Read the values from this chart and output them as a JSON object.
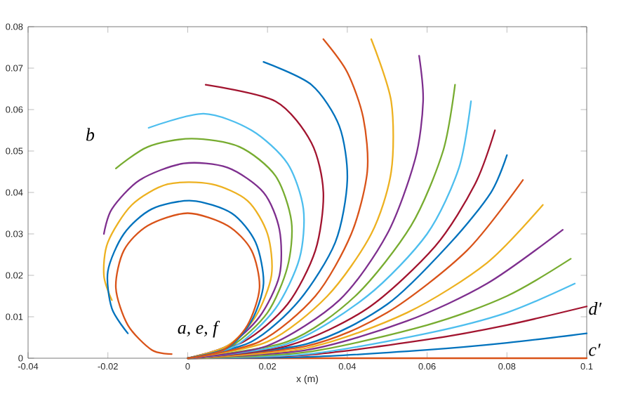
{
  "chart_data": {
    "type": "line",
    "xlabel": "x (m)",
    "xlim": [
      -0.04,
      0.1
    ],
    "xticks": [
      -0.04,
      -0.02,
      0,
      0.02,
      0.04,
      0.06,
      0.08,
      0.1
    ],
    "ylim": [
      0,
      0.08
    ],
    "yticks": [
      0,
      0.01,
      0.02,
      0.03,
      0.04,
      0.05,
      0.06,
      0.07,
      0.08
    ],
    "grid": false,
    "line_style": "solid",
    "annotations": [
      "b",
      "a, e, f",
      "d′",
      "c′"
    ],
    "series": [
      {
        "color": "#d95319",
        "x": [
          0,
          0.1
        ],
        "values": [
          0,
          0
        ]
      },
      {
        "color": "#0072bd",
        "x": [
          0,
          0.03,
          0.06,
          0.08,
          0.1
        ],
        "values": [
          0,
          0.0003,
          0.002,
          0.0037,
          0.006
        ]
      },
      {
        "color": "#a2142f",
        "x": [
          0,
          0.03,
          0.06,
          0.08,
          0.1
        ],
        "values": [
          0,
          0.0008,
          0.0045,
          0.008,
          0.0125
        ]
      },
      {
        "color": "#4dbeee",
        "x": [
          0,
          0.03,
          0.06,
          0.08,
          0.097
        ],
        "values": [
          0,
          0.001,
          0.006,
          0.011,
          0.018
        ]
      },
      {
        "color": "#77ac30",
        "x": [
          0,
          0.03,
          0.06,
          0.08,
          0.096
        ],
        "values": [
          0,
          0.0015,
          0.008,
          0.015,
          0.024
        ]
      },
      {
        "color": "#7e2f8e",
        "x": [
          0,
          0.03,
          0.055,
          0.075,
          0.094
        ],
        "values": [
          0,
          0.002,
          0.009,
          0.018,
          0.031
        ]
      },
      {
        "color": "#edb120",
        "x": [
          0,
          0.03,
          0.055,
          0.075,
          0.089
        ],
        "values": [
          0,
          0.0025,
          0.011,
          0.023,
          0.037
        ]
      },
      {
        "color": "#d95319",
        "x": [
          0,
          0.03,
          0.05,
          0.07,
          0.084
        ],
        "values": [
          0,
          0.003,
          0.011,
          0.026,
          0.043
        ]
      },
      {
        "color": "#0072bd",
        "x": [
          0,
          0.03,
          0.05,
          0.066,
          0.076,
          0.08
        ],
        "values": [
          0,
          0.0035,
          0.013,
          0.028,
          0.04,
          0.049
        ]
      },
      {
        "color": "#a2142f",
        "x": [
          0,
          0.025,
          0.045,
          0.062,
          0.072,
          0.077
        ],
        "values": [
          0,
          0.003,
          0.012,
          0.027,
          0.042,
          0.055
        ]
      },
      {
        "color": "#4dbeee",
        "x": [
          0,
          0.025,
          0.045,
          0.06,
          0.068,
          0.071
        ],
        "values": [
          0,
          0.0035,
          0.015,
          0.03,
          0.046,
          0.062
        ]
      },
      {
        "color": "#77ac30",
        "x": [
          0,
          0.025,
          0.042,
          0.056,
          0.064,
          0.067
        ],
        "values": [
          0,
          0.004,
          0.015,
          0.032,
          0.05,
          0.066
        ]
      },
      {
        "color": "#7e2f8e",
        "x": [
          0,
          0.02,
          0.038,
          0.05,
          0.057,
          0.059,
          0.058
        ],
        "values": [
          0,
          0.003,
          0.014,
          0.03,
          0.048,
          0.062,
          0.073
        ]
      },
      {
        "color": "#edb120",
        "x": [
          0,
          0.02,
          0.035,
          0.046,
          0.051,
          0.051,
          0.046
        ],
        "values": [
          0,
          0.004,
          0.015,
          0.03,
          0.045,
          0.062,
          0.077
        ]
      },
      {
        "color": "#d95319",
        "x": [
          0,
          0.018,
          0.032,
          0.041,
          0.045,
          0.044,
          0.04,
          0.034
        ],
        "values": [
          0,
          0.004,
          0.015,
          0.03,
          0.045,
          0.058,
          0.069,
          0.077
        ]
      },
      {
        "color": "#0072bd",
        "x": [
          0,
          0.016,
          0.028,
          0.037,
          0.04,
          0.038,
          0.031,
          0.019
        ],
        "values": [
          0,
          0.004,
          0.014,
          0.028,
          0.043,
          0.056,
          0.066,
          0.0715
        ]
      },
      {
        "color": "#a2142f",
        "x": [
          0,
          0.014,
          0.025,
          0.032,
          0.034,
          0.031,
          0.022,
          0.0045
        ],
        "values": [
          0,
          0.004,
          0.013,
          0.026,
          0.04,
          0.052,
          0.062,
          0.066
        ]
      },
      {
        "color": "#4dbeee",
        "x": [
          0,
          0.012,
          0.022,
          0.028,
          0.029,
          0.025,
          0.016,
          0.004,
          -0.0098
        ],
        "values": [
          0,
          0.003,
          0.012,
          0.024,
          0.036,
          0.047,
          0.055,
          0.059,
          0.0556
        ]
      },
      {
        "color": "#77ac30",
        "x": [
          0,
          0.011,
          0.02,
          0.025,
          0.026,
          0.022,
          0.013,
          0.001,
          -0.01,
          -0.018
        ],
        "values": [
          0,
          0.003,
          0.011,
          0.022,
          0.033,
          0.044,
          0.051,
          0.053,
          0.051,
          0.0458
        ]
      },
      {
        "color": "#7e2f8e",
        "x": [
          0,
          0.01,
          0.018,
          0.023,
          0.023,
          0.019,
          0.01,
          -0.001,
          -0.012,
          -0.019,
          -0.021
        ],
        "values": [
          0,
          0.003,
          0.01,
          0.02,
          0.031,
          0.04,
          0.046,
          0.047,
          0.043,
          0.036,
          0.03
        ]
      },
      {
        "color": "#edb120",
        "x": [
          0,
          0.01,
          0.017,
          0.021,
          0.02,
          0.015,
          0.006,
          -0.005,
          -0.014,
          -0.02,
          -0.021,
          -0.019
        ],
        "values": [
          0,
          0.003,
          0.01,
          0.02,
          0.03,
          0.038,
          0.042,
          0.042,
          0.037,
          0.028,
          0.02,
          0.014
        ]
      },
      {
        "color": "#0072bd",
        "x": [
          0,
          0.01,
          0.016,
          0.019,
          0.017,
          0.011,
          0.001,
          -0.009,
          -0.016,
          -0.02,
          -0.019,
          -0.015
        ],
        "values": [
          0,
          0.0025,
          0.009,
          0.018,
          0.028,
          0.035,
          0.038,
          0.036,
          0.03,
          0.021,
          0.012,
          0.006
        ]
      },
      {
        "color": "#d95319",
        "x": [
          0,
          0.009,
          0.015,
          0.018,
          0.016,
          0.01,
          0,
          -0.01,
          -0.016,
          -0.018,
          -0.015,
          -0.009,
          -0.004
        ],
        "values": [
          0,
          0.002,
          0.008,
          0.017,
          0.026,
          0.032,
          0.035,
          0.032,
          0.026,
          0.017,
          0.008,
          0.002,
          0.001
        ]
      }
    ]
  }
}
